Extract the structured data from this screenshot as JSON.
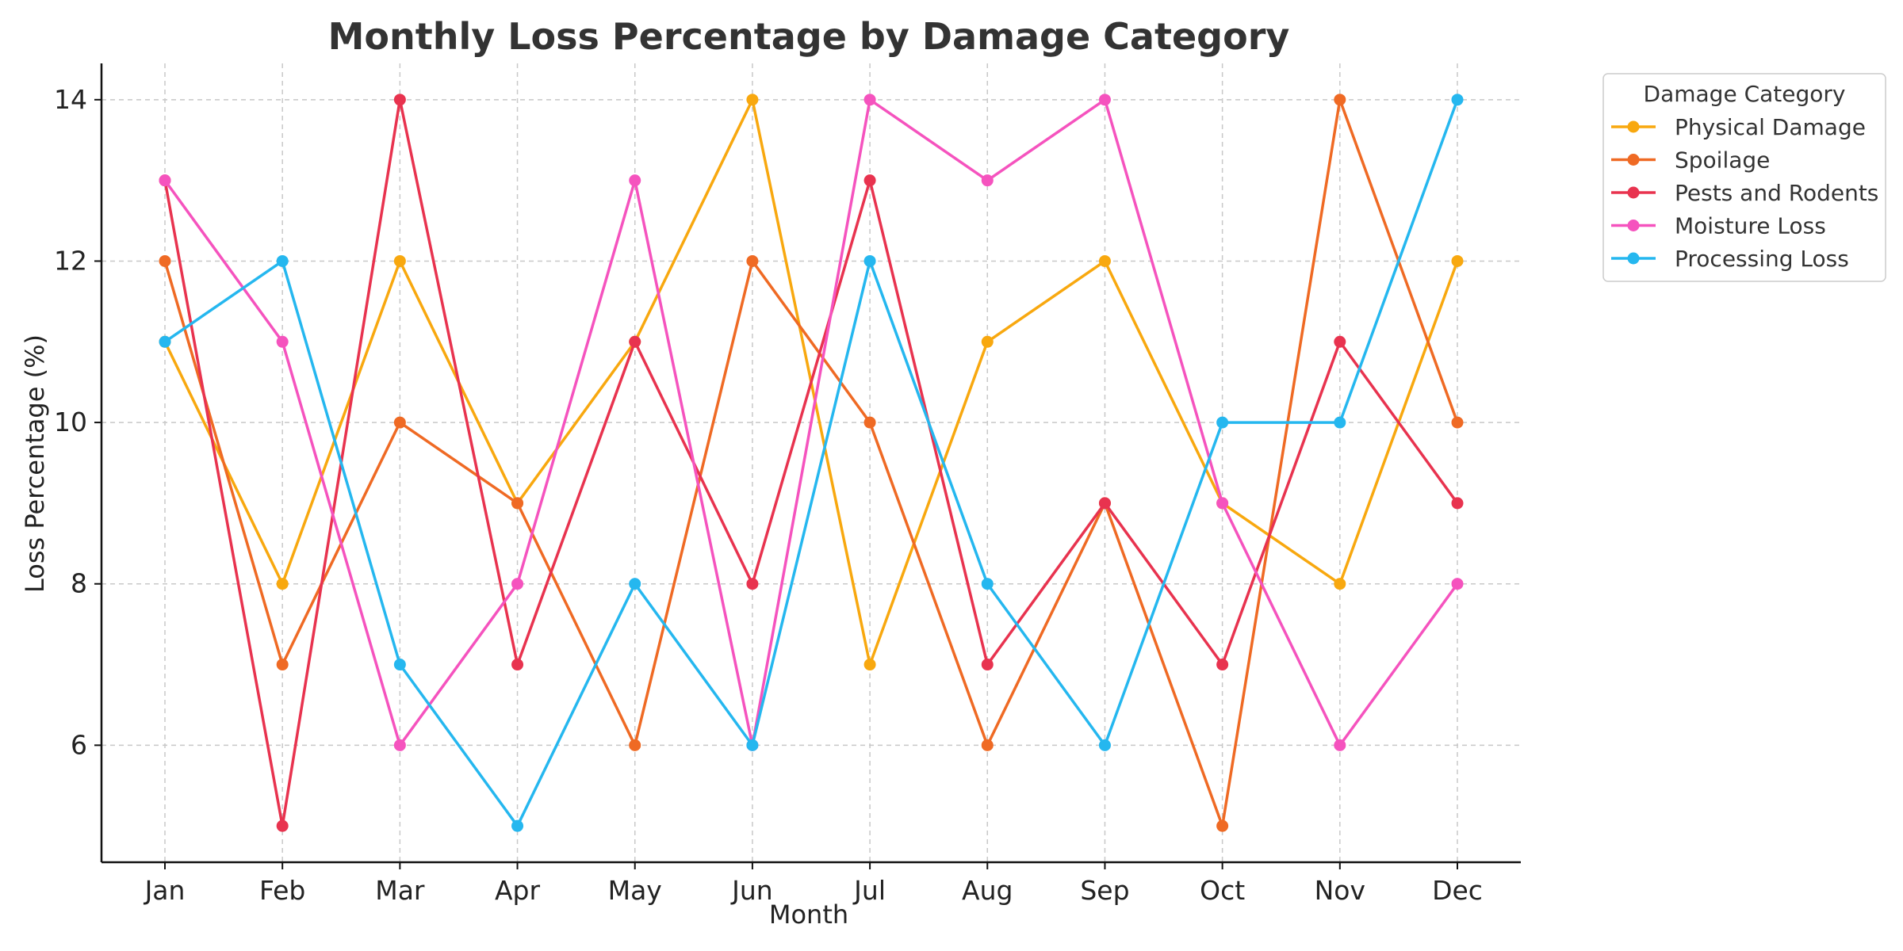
{
  "chart_data": {
    "type": "line",
    "title": "Monthly Loss Percentage by Damage Category",
    "xlabel": "Month",
    "ylabel": "Loss Percentage (%)",
    "categories": [
      "Jan",
      "Feb",
      "Mar",
      "Apr",
      "May",
      "Jun",
      "Jul",
      "Aug",
      "Sep",
      "Oct",
      "Nov",
      "Dec"
    ],
    "ylim": [
      4.55,
      14.45
    ],
    "yticks": [
      6,
      8,
      10,
      12,
      14
    ],
    "grid": true,
    "legend_title": "Damage Category",
    "legend_position": "outside-top-right",
    "series": [
      {
        "name": "Physical Damage",
        "color": "#f8a80f",
        "values": [
          11,
          8,
          12,
          9,
          11,
          14,
          7,
          11,
          12,
          9,
          8,
          12
        ]
      },
      {
        "name": "Spoilage",
        "color": "#ef6a24",
        "values": [
          12,
          7,
          10,
          9,
          6,
          12,
          10,
          6,
          9,
          5,
          14,
          10
        ]
      },
      {
        "name": "Pests and Rodents",
        "color": "#e8334f",
        "values": [
          13,
          5,
          14,
          7,
          11,
          8,
          13,
          7,
          9,
          7,
          11,
          9
        ]
      },
      {
        "name": "Moisture Loss",
        "color": "#f553be",
        "values": [
          13,
          11,
          6,
          8,
          13,
          6,
          14,
          13,
          14,
          9,
          6,
          8
        ]
      },
      {
        "name": "Processing Loss",
        "color": "#25b7ef",
        "values": [
          11,
          12,
          7,
          5,
          8,
          6,
          12,
          8,
          6,
          10,
          10,
          14
        ]
      }
    ]
  }
}
